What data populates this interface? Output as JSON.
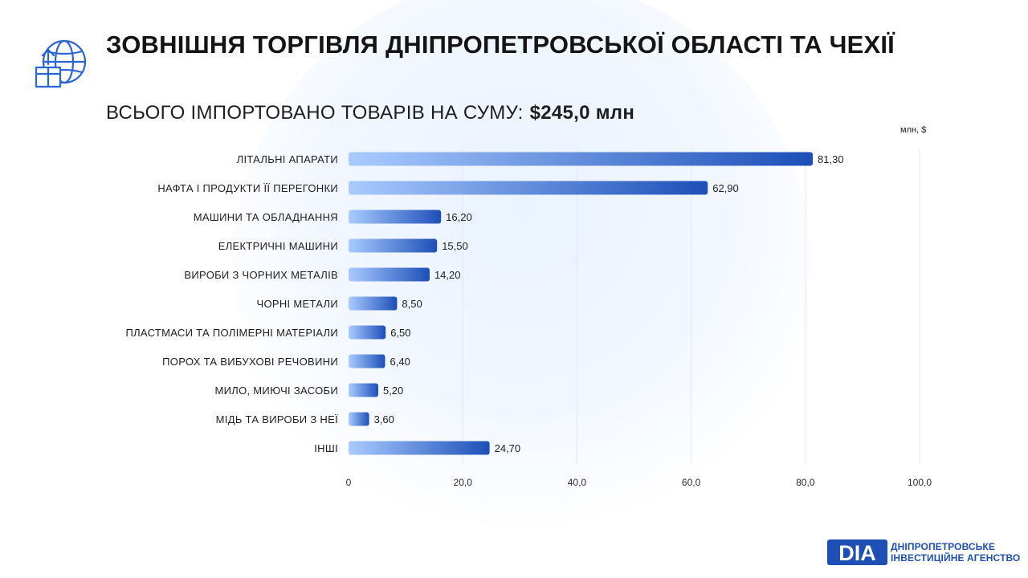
{
  "header": {
    "title": "ЗОВНІШНЯ ТОРГІВЛЯ ДНІПРОПЕТРОВСЬКОЇ ОБЛАСТІ ТА ЧЕХІЇ",
    "subtitle_label": "ВСЬОГО ІМПОРТОВАНО ТОВАРІВ НА СУМУ:",
    "subtitle_total": "$245,0 млн"
  },
  "footer": {
    "logo_mark": "DIA",
    "logo_line1": "ДНІПРОПЕТРОВСЬКЕ",
    "logo_line2": "ІНВЕСТИЦІЙНЕ АГЕНСТВО"
  },
  "colors": {
    "bar_start": "#a9cbff",
    "bar_end": "#1d4fb8",
    "grid": "#e3e8f0",
    "brand": "#1e4fb5"
  },
  "icons": [
    "globe-box-upload-icon"
  ],
  "chart_data": {
    "type": "bar",
    "orientation": "horizontal",
    "unit_label": "млн, $",
    "categories": [
      "ЛІТАЛЬНІ АПАРАТИ",
      "НАФТА І ПРОДУКТИ ЇЇ ПЕРЕГОНКИ",
      "МАШИНИ ТА ОБЛАДНАННЯ",
      "ЕЛЕКТРИЧНІ МАШИНИ",
      "ВИРОБИ З ЧОРНИХ МЕТАЛІВ",
      "ЧОРНІ МЕТАЛИ",
      "ПЛАСТМАСИ ТА ПОЛІМЕРНІ МАТЕРІАЛИ",
      "ПОРОХ ТА ВИБУХОВІ РЕЧОВИНИ",
      "МИЛО, МИЮЧІ ЗАСОБИ",
      "МІДЬ ТА ВИРОБИ З НЕЇ",
      "ІНШІ"
    ],
    "values": [
      81.3,
      62.9,
      16.2,
      15.5,
      14.2,
      8.5,
      6.5,
      6.4,
      5.2,
      3.6,
      24.7
    ],
    "value_labels": [
      "81,30",
      "62,90",
      "16,20",
      "15,50",
      "14,20",
      "8,50",
      "6,50",
      "6,40",
      "5,20",
      "3,60",
      "24,70"
    ],
    "xlim": [
      0,
      100
    ],
    "ticks": [
      0,
      20,
      40,
      60,
      80,
      100
    ],
    "tick_labels": [
      "0",
      "20,0",
      "40,0",
      "60,0",
      "80,0",
      "100,0"
    ],
    "grid": true
  }
}
